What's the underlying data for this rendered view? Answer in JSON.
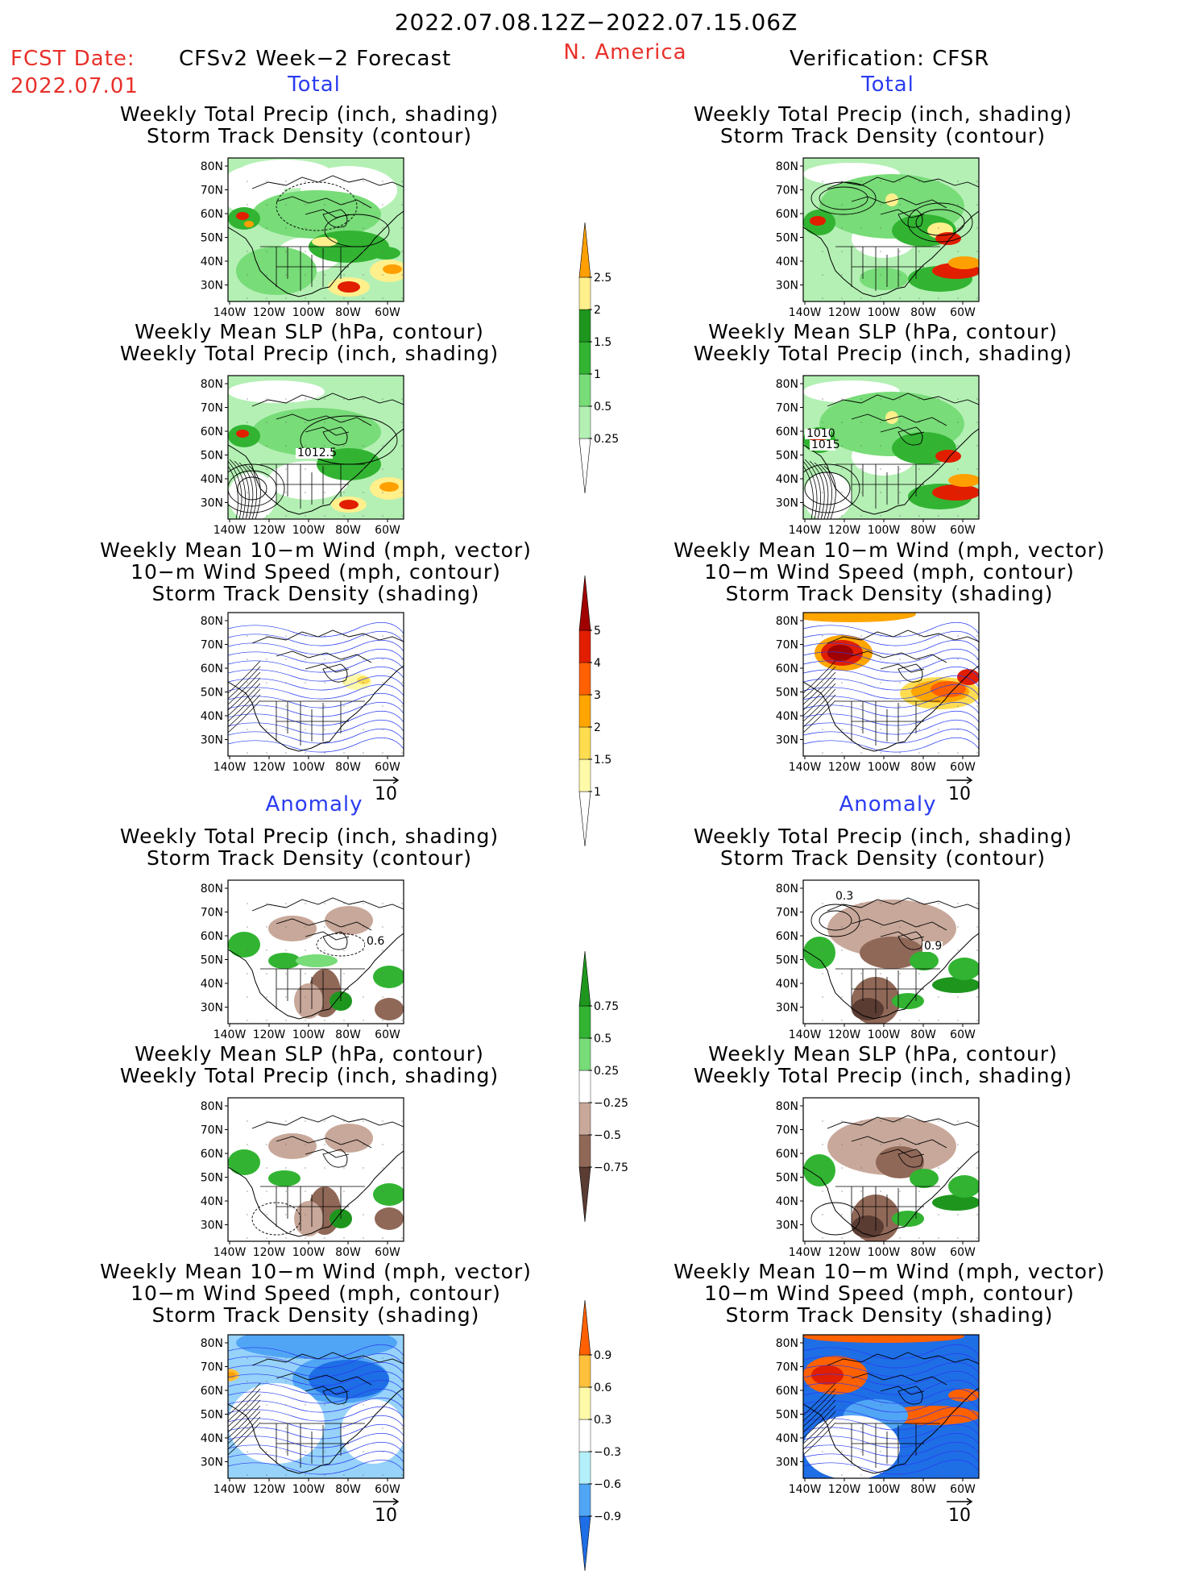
{
  "header": {
    "date_range": "2022.07.08.12Z−2022.07.15.06Z",
    "fcst_label": "FCST Date:",
    "fcst_date": "2022.07.01",
    "forecast_title": "CFSv2 Week−2 Forecast",
    "region": "N. America",
    "verification_title": "Verification: CFSR"
  },
  "section_labels": {
    "total": "Total",
    "anomaly": "Anomaly"
  },
  "panel_titles": {
    "precip": [
      "Weekly Total Precip (inch, shading)",
      "Storm Track Density (contour)"
    ],
    "slp": [
      "Weekly Mean SLP (hPa, contour)",
      "Weekly Total Precip (inch, shading)"
    ],
    "wind": [
      "Weekly Mean 10−m Wind (mph, vector)",
      "10−m Wind Speed (mph, contour)",
      "Storm Track Density (shading)"
    ]
  },
  "axes": {
    "lat_ticks": [
      "80N",
      "70N",
      "60N",
      "50N",
      "40N",
      "30N"
    ],
    "lon_ticks": [
      "140W",
      "120W",
      "100W",
      "80W",
      "60W"
    ]
  },
  "vector_reference": "10",
  "contour_labels": {
    "fcst_total_slp": "1012.5",
    "obs_total_slp": [
      "1010",
      "1015"
    ],
    "fcst_anom_precip": "0.6",
    "obs_anom_precip": [
      "0.3",
      "0.9"
    ]
  },
  "colors": {
    "precip": [
      "#b4f0b4",
      "#78dc78",
      "#32b432",
      "#1e961e",
      "#fff08c",
      "#ffa000",
      "#e11e00"
    ],
    "storm": [
      "#fffaaa",
      "#ffdc50",
      "#ffa500",
      "#ff6000",
      "#e11e00",
      "#a00000"
    ],
    "anom_precip": [
      "#5a3c32",
      "#906858",
      "#c8a89a",
      "#e8d4cc",
      "#ffffff",
      "#b4f0b4",
      "#78dc78",
      "#32b432",
      "#1e961e"
    ],
    "anom_storm": [
      "#1e6ee6",
      "#50a5f5",
      "#96d2fa",
      "#b4f0fa",
      "#ffffff",
      "#fffaaa",
      "#ffc03c",
      "#ffa000",
      "#ff6000"
    ]
  },
  "chart_data": [
    {
      "type": "heatmap",
      "name": "Forecast total: weekly total precip + storm track density",
      "title": [
        "Weekly Total Precip (inch, shading)",
        "Storm Track Density (contour)"
      ],
      "x_ticks": [
        "140W",
        "120W",
        "100W",
        "80W",
        "60W"
      ],
      "y_ticks": [
        "80N",
        "70N",
        "60N",
        "50N",
        "40N",
        "30N"
      ],
      "colorbar": {
        "levels": [
          "0.25",
          "0.5",
          "1",
          "1.5",
          "2",
          "2.5"
        ]
      }
    },
    {
      "type": "heatmap",
      "name": "Verification total: weekly total precip + storm track density",
      "title": [
        "Weekly Total Precip (inch, shading)",
        "Storm Track Density (contour)"
      ],
      "x_ticks": [
        "140W",
        "120W",
        "100W",
        "80W",
        "60W"
      ],
      "y_ticks": [
        "80N",
        "70N",
        "60N",
        "50N",
        "40N",
        "30N"
      ]
    },
    {
      "type": "heatmap",
      "name": "Forecast total: weekly mean SLP + precip",
      "title": [
        "Weekly Mean SLP (hPa, contour)",
        "Weekly Total Precip (inch, shading)"
      ],
      "x_ticks": [
        "140W",
        "120W",
        "100W",
        "80W",
        "60W"
      ],
      "y_ticks": [
        "80N",
        "70N",
        "60N",
        "50N",
        "40N",
        "30N"
      ],
      "contour_labels": [
        "1012.5"
      ]
    },
    {
      "type": "heatmap",
      "name": "Verification total: weekly mean SLP + precip",
      "title": [
        "Weekly Mean SLP (hPa, contour)",
        "Weekly Total Precip (inch, shading)"
      ],
      "x_ticks": [
        "140W",
        "120W",
        "100W",
        "80W",
        "60W"
      ],
      "y_ticks": [
        "80N",
        "70N",
        "60N",
        "50N",
        "40N",
        "30N"
      ],
      "contour_labels": [
        "1010",
        "1015"
      ]
    },
    {
      "type": "heatmap",
      "name": "Forecast total: 10-m wind + storm track density",
      "title": [
        "Weekly Mean 10−m Wind (mph, vector)",
        "10−m Wind Speed (mph, contour)",
        "Storm Track Density (shading)"
      ],
      "x_ticks": [
        "140W",
        "120W",
        "100W",
        "80W",
        "60W"
      ],
      "y_ticks": [
        "80N",
        "70N",
        "60N",
        "50N",
        "40N",
        "30N"
      ],
      "colorbar": {
        "levels": [
          "1",
          "1.5",
          "2",
          "3",
          "4",
          "5"
        ]
      },
      "vector_reference": "10"
    },
    {
      "type": "heatmap",
      "name": "Verification total: 10-m wind + storm track density",
      "title": [
        "Weekly Mean 10−m Wind (mph, vector)",
        "10−m Wind Speed (mph, contour)",
        "Storm Track Density (shading)"
      ],
      "x_ticks": [
        "140W",
        "120W",
        "100W",
        "80W",
        "60W"
      ],
      "y_ticks": [
        "80N",
        "70N",
        "60N",
        "50N",
        "40N",
        "30N"
      ],
      "vector_reference": "10"
    },
    {
      "type": "heatmap",
      "name": "Forecast anomaly: precip + storm track density",
      "title": [
        "Weekly Total Precip (inch, shading)",
        "Storm Track Density (contour)"
      ],
      "x_ticks": [
        "140W",
        "120W",
        "100W",
        "80W",
        "60W"
      ],
      "y_ticks": [
        "80N",
        "70N",
        "60N",
        "50N",
        "40N",
        "30N"
      ],
      "colorbar": {
        "levels": [
          "−0.75",
          "−0.5",
          "−0.25",
          "0.25",
          "0.5",
          "0.75"
        ]
      }
    },
    {
      "type": "heatmap",
      "name": "Verification anomaly: precip + storm track density",
      "title": [
        "Weekly Total Precip (inch, shading)",
        "Storm Track Density (contour)"
      ],
      "x_ticks": [
        "140W",
        "120W",
        "100W",
        "80W",
        "60W"
      ],
      "y_ticks": [
        "80N",
        "70N",
        "60N",
        "50N",
        "40N",
        "30N"
      ]
    },
    {
      "type": "heatmap",
      "name": "Forecast anomaly: SLP + precip",
      "title": [
        "Weekly Mean SLP (hPa, contour)",
        "Weekly Total Precip (inch, shading)"
      ],
      "x_ticks": [
        "140W",
        "120W",
        "100W",
        "80W",
        "60W"
      ],
      "y_ticks": [
        "80N",
        "70N",
        "60N",
        "50N",
        "40N",
        "30N"
      ]
    },
    {
      "type": "heatmap",
      "name": "Verification anomaly: SLP + precip",
      "title": [
        "Weekly Mean SLP (hPa, contour)",
        "Weekly Total Precip (inch, shading)"
      ],
      "x_ticks": [
        "140W",
        "120W",
        "100W",
        "80W",
        "60W"
      ],
      "y_ticks": [
        "80N",
        "70N",
        "60N",
        "50N",
        "40N",
        "30N"
      ]
    },
    {
      "type": "heatmap",
      "name": "Forecast anomaly: 10-m wind + storm track density",
      "title": [
        "Weekly Mean 10−m Wind (mph, vector)",
        "10−m Wind Speed (mph, contour)",
        "Storm Track Density (shading)"
      ],
      "x_ticks": [
        "140W",
        "120W",
        "100W",
        "80W",
        "60W"
      ],
      "y_ticks": [
        "80N",
        "70N",
        "60N",
        "50N",
        "40N",
        "30N"
      ],
      "colorbar": {
        "levels": [
          "−0.9",
          "−0.6",
          "−0.3",
          "0.3",
          "0.6",
          "0.9"
        ]
      },
      "vector_reference": "10"
    },
    {
      "type": "heatmap",
      "name": "Verification anomaly: 10-m wind + storm track density",
      "title": [
        "Weekly Mean 10−m Wind (mph, vector)",
        "10−m Wind Speed (mph, contour)",
        "Storm Track Density (shading)"
      ],
      "x_ticks": [
        "140W",
        "120W",
        "100W",
        "80W",
        "60W"
      ],
      "y_ticks": [
        "80N",
        "70N",
        "60N",
        "50N",
        "40N",
        "30N"
      ],
      "vector_reference": "10"
    }
  ],
  "colorbars": [
    {
      "name": "total-precip-colorbar",
      "levels": [
        "0.25",
        "0.5",
        "1",
        "1.5",
        "2",
        "2.5"
      ]
    },
    {
      "name": "total-storm-colorbar",
      "levels": [
        "1",
        "1.5",
        "2",
        "3",
        "4",
        "5"
      ]
    },
    {
      "name": "anomaly-precip-colorbar",
      "levels": [
        "−0.75",
        "−0.5",
        "−0.25",
        "0.25",
        "0.5",
        "0.75"
      ]
    },
    {
      "name": "anomaly-storm-colorbar",
      "levels": [
        "−0.9",
        "−0.6",
        "−0.3",
        "0.3",
        "0.6",
        "0.9"
      ]
    }
  ]
}
